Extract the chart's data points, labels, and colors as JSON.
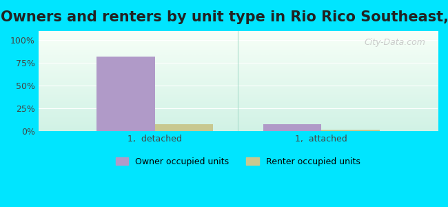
{
  "title": "Owners and renters by unit type in Rio Rico Southeast, AZ",
  "categories": [
    "1,  detached",
    "1,  attached"
  ],
  "owner_values": [
    82,
    8
  ],
  "renter_values": [
    8,
    2
  ],
  "owner_color": "#b09ac8",
  "renter_color": "#c8c890",
  "outer_bg": "#00e5ff",
  "yticks": [
    0,
    25,
    50,
    75,
    100
  ],
  "ytick_labels": [
    "0%",
    "25%",
    "50%",
    "75%",
    "100%"
  ],
  "ylim": [
    0,
    110
  ],
  "xlim": [
    -0.7,
    1.7
  ],
  "legend_labels": [
    "Owner occupied units",
    "Renter occupied units"
  ],
  "watermark": "City-Data.com",
  "title_fontsize": 15,
  "bar_width": 0.35
}
